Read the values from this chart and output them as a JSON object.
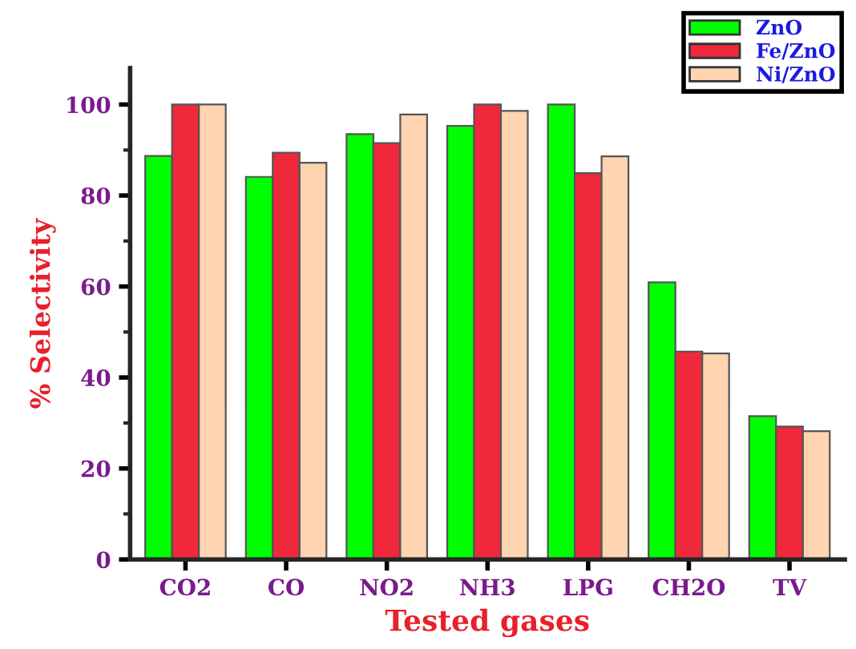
{
  "chart_data": {
    "type": "bar",
    "xlabel": "Tested gases",
    "ylabel": "% Selectivity",
    "categories": [
      "CO2",
      "CO",
      "NO2",
      "NH3",
      "LPG",
      "CH2O",
      "TV"
    ],
    "series": [
      {
        "name": "ZnO",
        "color": "#00ff00",
        "values": [
          88.7,
          84.1,
          93.5,
          95.3,
          100,
          60.9,
          31.5
        ]
      },
      {
        "name": "Fe/ZnO",
        "color": "#f0283c",
        "values": [
          100,
          89.4,
          91.5,
          100,
          84.9,
          45.7,
          29.2
        ]
      },
      {
        "name": "Ni/ZnO",
        "color": "#ffd4b0",
        "values": [
          100,
          87.2,
          97.8,
          98.6,
          88.6,
          45.3,
          28.2
        ]
      }
    ],
    "ylim": [
      0,
      108
    ],
    "yticks": [
      0,
      20,
      40,
      60,
      80,
      100
    ],
    "grid": false,
    "legend": "top right"
  }
}
